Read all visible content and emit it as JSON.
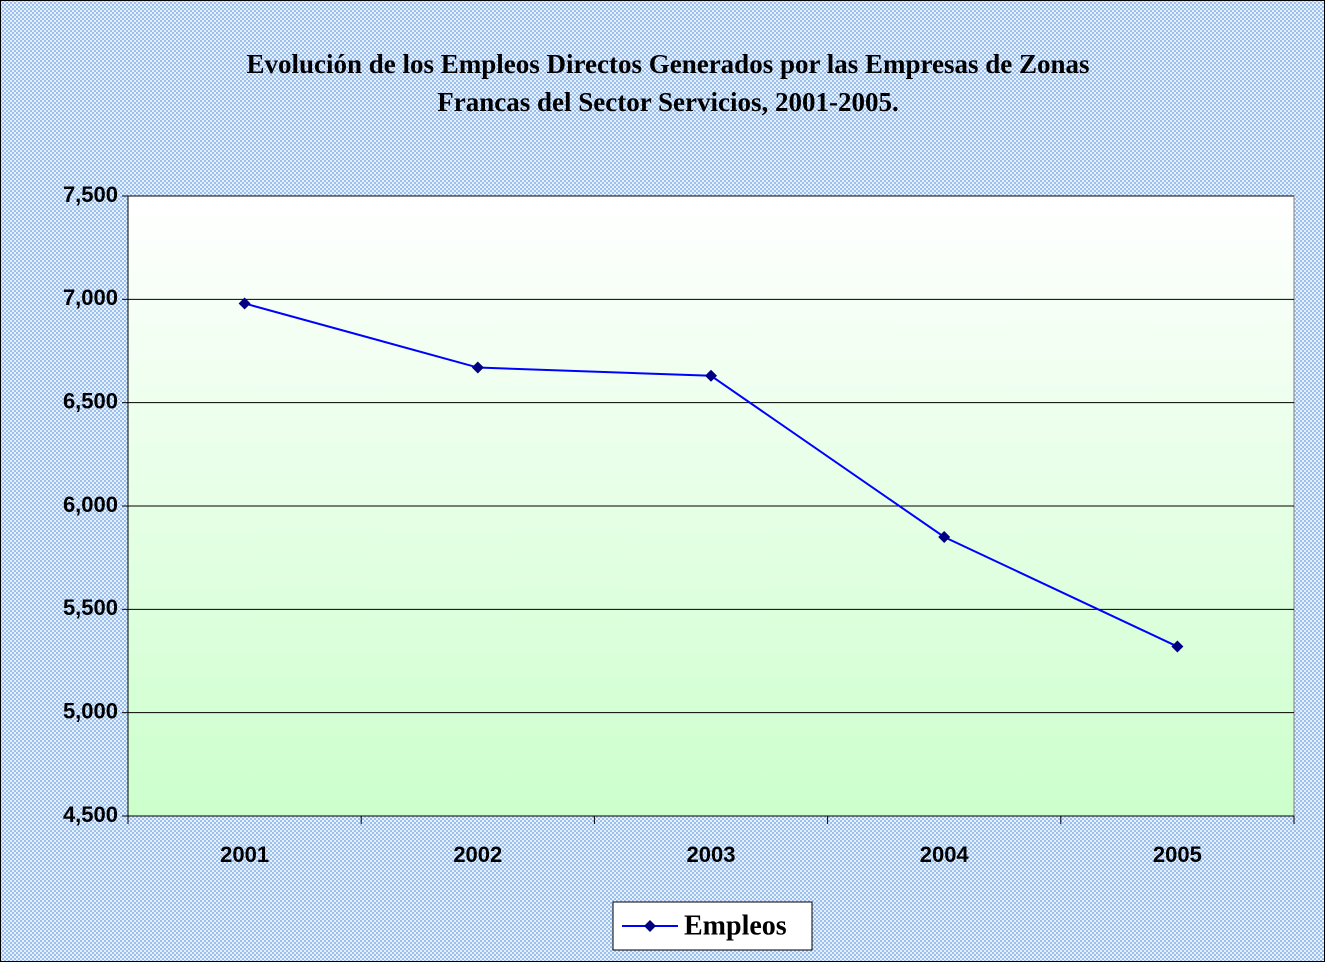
{
  "chart_data": {
    "type": "line",
    "title": [
      "Evolución de los Empleos Directos Generados por las Empresas de Zonas",
      "Francas del Sector Servicios, 2001-2005."
    ],
    "categories": [
      "2001",
      "2002",
      "2003",
      "2004",
      "2005"
    ],
    "series": [
      {
        "name": "Empleos",
        "color": "#0000ff",
        "marker_color": "#000080",
        "values": [
          6980,
          6670,
          6630,
          5850,
          5320
        ]
      }
    ],
    "ylim": [
      4500,
      7500
    ],
    "yticks": [
      {
        "value": 4500,
        "label": "4,500"
      },
      {
        "value": 5000,
        "label": "5,000"
      },
      {
        "value": 5500,
        "label": "5,500"
      },
      {
        "value": 6000,
        "label": "6,000"
      },
      {
        "value": 6500,
        "label": "6,500"
      },
      {
        "value": 7000,
        "label": "7,000"
      },
      {
        "value": 7500,
        "label": "7,500"
      }
    ],
    "grid": true,
    "legend": "bottom"
  }
}
